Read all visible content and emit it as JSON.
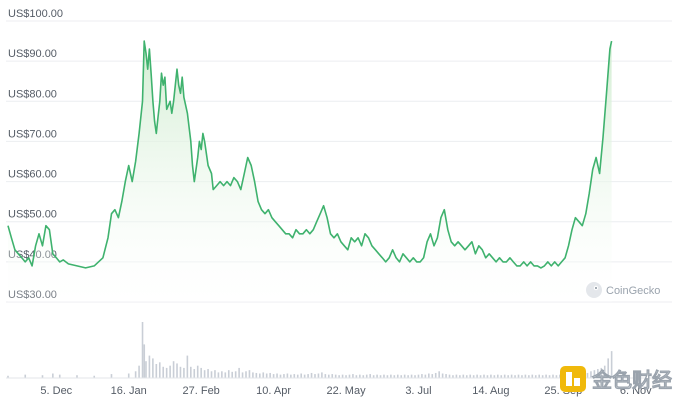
{
  "chart_data": {
    "type": "area",
    "y_ticks": [
      "US$100.00",
      "US$90.00",
      "US$80.00",
      "US$70.00",
      "US$60.00",
      "US$50.00",
      "US$40.00",
      "US$30.00"
    ],
    "y_tick_values": [
      100,
      90,
      80,
      70,
      60,
      50,
      40,
      30
    ],
    "ylim": [
      30,
      100
    ],
    "x_ticks": [
      "5. Dec",
      "16. Jan",
      "27. Feb",
      "10. Apr",
      "22. May",
      "3. Jul",
      "14. Aug",
      "25. Sep",
      "6. Nov"
    ],
    "x_tick_days": [
      28,
      70,
      112,
      154,
      196,
      238,
      280,
      322,
      364
    ],
    "xlim_days": [
      0,
      385
    ],
    "series": [
      {
        "values": [
          [
            0,
            49
          ],
          [
            2,
            46
          ],
          [
            4,
            43
          ],
          [
            6,
            42
          ],
          [
            8,
            41
          ],
          [
            10,
            40
          ],
          [
            12,
            41
          ],
          [
            14,
            39
          ],
          [
            16,
            44
          ],
          [
            18,
            47
          ],
          [
            20,
            44
          ],
          [
            22,
            49
          ],
          [
            24,
            48
          ],
          [
            26,
            42
          ],
          [
            28,
            41
          ],
          [
            30,
            40
          ],
          [
            32,
            40.5
          ],
          [
            35,
            39.5
          ],
          [
            40,
            39
          ],
          [
            45,
            38.5
          ],
          [
            50,
            39
          ],
          [
            55,
            41
          ],
          [
            58,
            46
          ],
          [
            60,
            52
          ],
          [
            62,
            53
          ],
          [
            64,
            51
          ],
          [
            66,
            55
          ],
          [
            68,
            60
          ],
          [
            70,
            64
          ],
          [
            72,
            60
          ],
          [
            74,
            65
          ],
          [
            76,
            72
          ],
          [
            78,
            80
          ],
          [
            79,
            95
          ],
          [
            80,
            92
          ],
          [
            81,
            88
          ],
          [
            82,
            93
          ],
          [
            83,
            87
          ],
          [
            84,
            80
          ],
          [
            85,
            75
          ],
          [
            86,
            72
          ],
          [
            87,
            76
          ],
          [
            88,
            80
          ],
          [
            89,
            87
          ],
          [
            90,
            84
          ],
          [
            91,
            86
          ],
          [
            92,
            78
          ],
          [
            94,
            80
          ],
          [
            95,
            77
          ],
          [
            96,
            80
          ],
          [
            97,
            84
          ],
          [
            98,
            88
          ],
          [
            99,
            84
          ],
          [
            100,
            82
          ],
          [
            101,
            86
          ],
          [
            102,
            81
          ],
          [
            104,
            77
          ],
          [
            106,
            70
          ],
          [
            107,
            64
          ],
          [
            108,
            60
          ],
          [
            110,
            66
          ],
          [
            111,
            70
          ],
          [
            112,
            68
          ],
          [
            113,
            72
          ],
          [
            114,
            70
          ],
          [
            116,
            64
          ],
          [
            118,
            62
          ],
          [
            119,
            58
          ],
          [
            121,
            59
          ],
          [
            123,
            60
          ],
          [
            125,
            59
          ],
          [
            127,
            60
          ],
          [
            129,
            59
          ],
          [
            131,
            61
          ],
          [
            133,
            60
          ],
          [
            135,
            58
          ],
          [
            137,
            62
          ],
          [
            139,
            66
          ],
          [
            141,
            64
          ],
          [
            143,
            60
          ],
          [
            145,
            55
          ],
          [
            147,
            53
          ],
          [
            149,
            52
          ],
          [
            151,
            53
          ],
          [
            153,
            51
          ],
          [
            155,
            50
          ],
          [
            157,
            49
          ],
          [
            159,
            48
          ],
          [
            161,
            47
          ],
          [
            163,
            47
          ],
          [
            165,
            46
          ],
          [
            167,
            48
          ],
          [
            169,
            47
          ],
          [
            171,
            47
          ],
          [
            173,
            48
          ],
          [
            175,
            47
          ],
          [
            177,
            48
          ],
          [
            179,
            50
          ],
          [
            181,
            52
          ],
          [
            183,
            54
          ],
          [
            185,
            51
          ],
          [
            187,
            47
          ],
          [
            189,
            46
          ],
          [
            191,
            47
          ],
          [
            193,
            45
          ],
          [
            195,
            44
          ],
          [
            197,
            43
          ],
          [
            199,
            46
          ],
          [
            201,
            45
          ],
          [
            203,
            46
          ],
          [
            205,
            44
          ],
          [
            207,
            47
          ],
          [
            209,
            46
          ],
          [
            211,
            44
          ],
          [
            213,
            43
          ],
          [
            215,
            42
          ],
          [
            217,
            41
          ],
          [
            219,
            40
          ],
          [
            221,
            41
          ],
          [
            223,
            43
          ],
          [
            225,
            41
          ],
          [
            227,
            40
          ],
          [
            229,
            42
          ],
          [
            231,
            41
          ],
          [
            233,
            40
          ],
          [
            235,
            41
          ],
          [
            237,
            40
          ],
          [
            239,
            40
          ],
          [
            241,
            41
          ],
          [
            243,
            45
          ],
          [
            245,
            47
          ],
          [
            247,
            44
          ],
          [
            249,
            46
          ],
          [
            251,
            51
          ],
          [
            253,
            53
          ],
          [
            255,
            48
          ],
          [
            257,
            45
          ],
          [
            259,
            44
          ],
          [
            261,
            45
          ],
          [
            263,
            44
          ],
          [
            265,
            43
          ],
          [
            267,
            44
          ],
          [
            269,
            45
          ],
          [
            271,
            42
          ],
          [
            273,
            44
          ],
          [
            275,
            43
          ],
          [
            277,
            41
          ],
          [
            279,
            42
          ],
          [
            281,
            41
          ],
          [
            283,
            40
          ],
          [
            285,
            41
          ],
          [
            287,
            40
          ],
          [
            289,
            40
          ],
          [
            291,
            41
          ],
          [
            293,
            40
          ],
          [
            295,
            39
          ],
          [
            297,
            39
          ],
          [
            299,
            40
          ],
          [
            301,
            39
          ],
          [
            303,
            40
          ],
          [
            305,
            39
          ],
          [
            307,
            39
          ],
          [
            309,
            38.5
          ],
          [
            311,
            39
          ],
          [
            313,
            40
          ],
          [
            315,
            39
          ],
          [
            317,
            40
          ],
          [
            319,
            39
          ],
          [
            321,
            40
          ],
          [
            323,
            41
          ],
          [
            325,
            44
          ],
          [
            327,
            48
          ],
          [
            329,
            51
          ],
          [
            331,
            50
          ],
          [
            333,
            49
          ],
          [
            335,
            52
          ],
          [
            337,
            57
          ],
          [
            339,
            63
          ],
          [
            341,
            66
          ],
          [
            343,
            62
          ],
          [
            345,
            71
          ],
          [
            347,
            82
          ],
          [
            349,
            93
          ],
          [
            350,
            95
          ]
        ]
      }
    ],
    "volume": {
      "max": 100,
      "values": [
        [
          0,
          4
        ],
        [
          10,
          6
        ],
        [
          20,
          5
        ],
        [
          26,
          8
        ],
        [
          30,
          6
        ],
        [
          40,
          5
        ],
        [
          50,
          4
        ],
        [
          60,
          7
        ],
        [
          70,
          8
        ],
        [
          74,
          12
        ],
        [
          76,
          22
        ],
        [
          78,
          100
        ],
        [
          79,
          60
        ],
        [
          80,
          30
        ],
        [
          82,
          40
        ],
        [
          84,
          35
        ],
        [
          86,
          25
        ],
        [
          88,
          28
        ],
        [
          90,
          20
        ],
        [
          92,
          18
        ],
        [
          94,
          22
        ],
        [
          96,
          30
        ],
        [
          98,
          26
        ],
        [
          100,
          20
        ],
        [
          102,
          18
        ],
        [
          104,
          40
        ],
        [
          106,
          20
        ],
        [
          108,
          16
        ],
        [
          110,
          22
        ],
        [
          112,
          18
        ],
        [
          114,
          14
        ],
        [
          116,
          16
        ],
        [
          118,
          12
        ],
        [
          120,
          14
        ],
        [
          122,
          10
        ],
        [
          124,
          12
        ],
        [
          126,
          10
        ],
        [
          128,
          14
        ],
        [
          130,
          11
        ],
        [
          132,
          12
        ],
        [
          134,
          18
        ],
        [
          136,
          10
        ],
        [
          138,
          12
        ],
        [
          140,
          14
        ],
        [
          142,
          10
        ],
        [
          144,
          9
        ],
        [
          146,
          8
        ],
        [
          148,
          10
        ],
        [
          150,
          8
        ],
        [
          152,
          9
        ],
        [
          154,
          7
        ],
        [
          156,
          8
        ],
        [
          158,
          6
        ],
        [
          160,
          7
        ],
        [
          162,
          8
        ],
        [
          164,
          6
        ],
        [
          166,
          7
        ],
        [
          168,
          6
        ],
        [
          170,
          8
        ],
        [
          172,
          6
        ],
        [
          174,
          7
        ],
        [
          176,
          9
        ],
        [
          178,
          7
        ],
        [
          180,
          8
        ],
        [
          182,
          10
        ],
        [
          184,
          7
        ],
        [
          186,
          6
        ],
        [
          188,
          7
        ],
        [
          190,
          6
        ],
        [
          192,
          5
        ],
        [
          194,
          6
        ],
        [
          196,
          5
        ],
        [
          198,
          6
        ],
        [
          200,
          7
        ],
        [
          202,
          5
        ],
        [
          204,
          6
        ],
        [
          206,
          5
        ],
        [
          208,
          6
        ],
        [
          210,
          7
        ],
        [
          212,
          5
        ],
        [
          214,
          6
        ],
        [
          216,
          5
        ],
        [
          218,
          6
        ],
        [
          220,
          5
        ],
        [
          222,
          6
        ],
        [
          224,
          5
        ],
        [
          226,
          6
        ],
        [
          228,
          5
        ],
        [
          230,
          6
        ],
        [
          232,
          5
        ],
        [
          234,
          6
        ],
        [
          236,
          5
        ],
        [
          238,
          6
        ],
        [
          240,
          7
        ],
        [
          242,
          6
        ],
        [
          244,
          8
        ],
        [
          246,
          7
        ],
        [
          248,
          9
        ],
        [
          250,
          12
        ],
        [
          252,
          8
        ],
        [
          254,
          7
        ],
        [
          256,
          6
        ],
        [
          258,
          5
        ],
        [
          260,
          6
        ],
        [
          262,
          5
        ],
        [
          264,
          6
        ],
        [
          266,
          5
        ],
        [
          268,
          6
        ],
        [
          270,
          5
        ],
        [
          272,
          6
        ],
        [
          274,
          5
        ],
        [
          276,
          6
        ],
        [
          278,
          5
        ],
        [
          280,
          6
        ],
        [
          282,
          5
        ],
        [
          284,
          6
        ],
        [
          286,
          5
        ],
        [
          288,
          6
        ],
        [
          290,
          5
        ],
        [
          292,
          6
        ],
        [
          294,
          5
        ],
        [
          296,
          6
        ],
        [
          298,
          5
        ],
        [
          300,
          6
        ],
        [
          302,
          5
        ],
        [
          304,
          6
        ],
        [
          306,
          5
        ],
        [
          308,
          6
        ],
        [
          310,
          5
        ],
        [
          312,
          6
        ],
        [
          314,
          5
        ],
        [
          316,
          6
        ],
        [
          318,
          5
        ],
        [
          320,
          6
        ],
        [
          322,
          7
        ],
        [
          324,
          6
        ],
        [
          326,
          8
        ],
        [
          328,
          7
        ],
        [
          330,
          9
        ],
        [
          332,
          8
        ],
        [
          334,
          10
        ],
        [
          336,
          9
        ],
        [
          338,
          12
        ],
        [
          340,
          14
        ],
        [
          342,
          16
        ],
        [
          344,
          18
        ],
        [
          346,
          22
        ],
        [
          348,
          35
        ],
        [
          350,
          48
        ]
      ]
    },
    "line_color": "#3fb26e",
    "fill_top_color": "#cfeccf",
    "fill_bottom_color": "#ffffff",
    "volume_color": "#c9ced6",
    "grid": true,
    "legend": "none"
  },
  "watermark": {
    "label": "CoinGecko",
    "icon": "coingecko-logo-icon"
  },
  "watermark2": {
    "label": "金色财经",
    "icon": "jinse-logo-icon"
  }
}
